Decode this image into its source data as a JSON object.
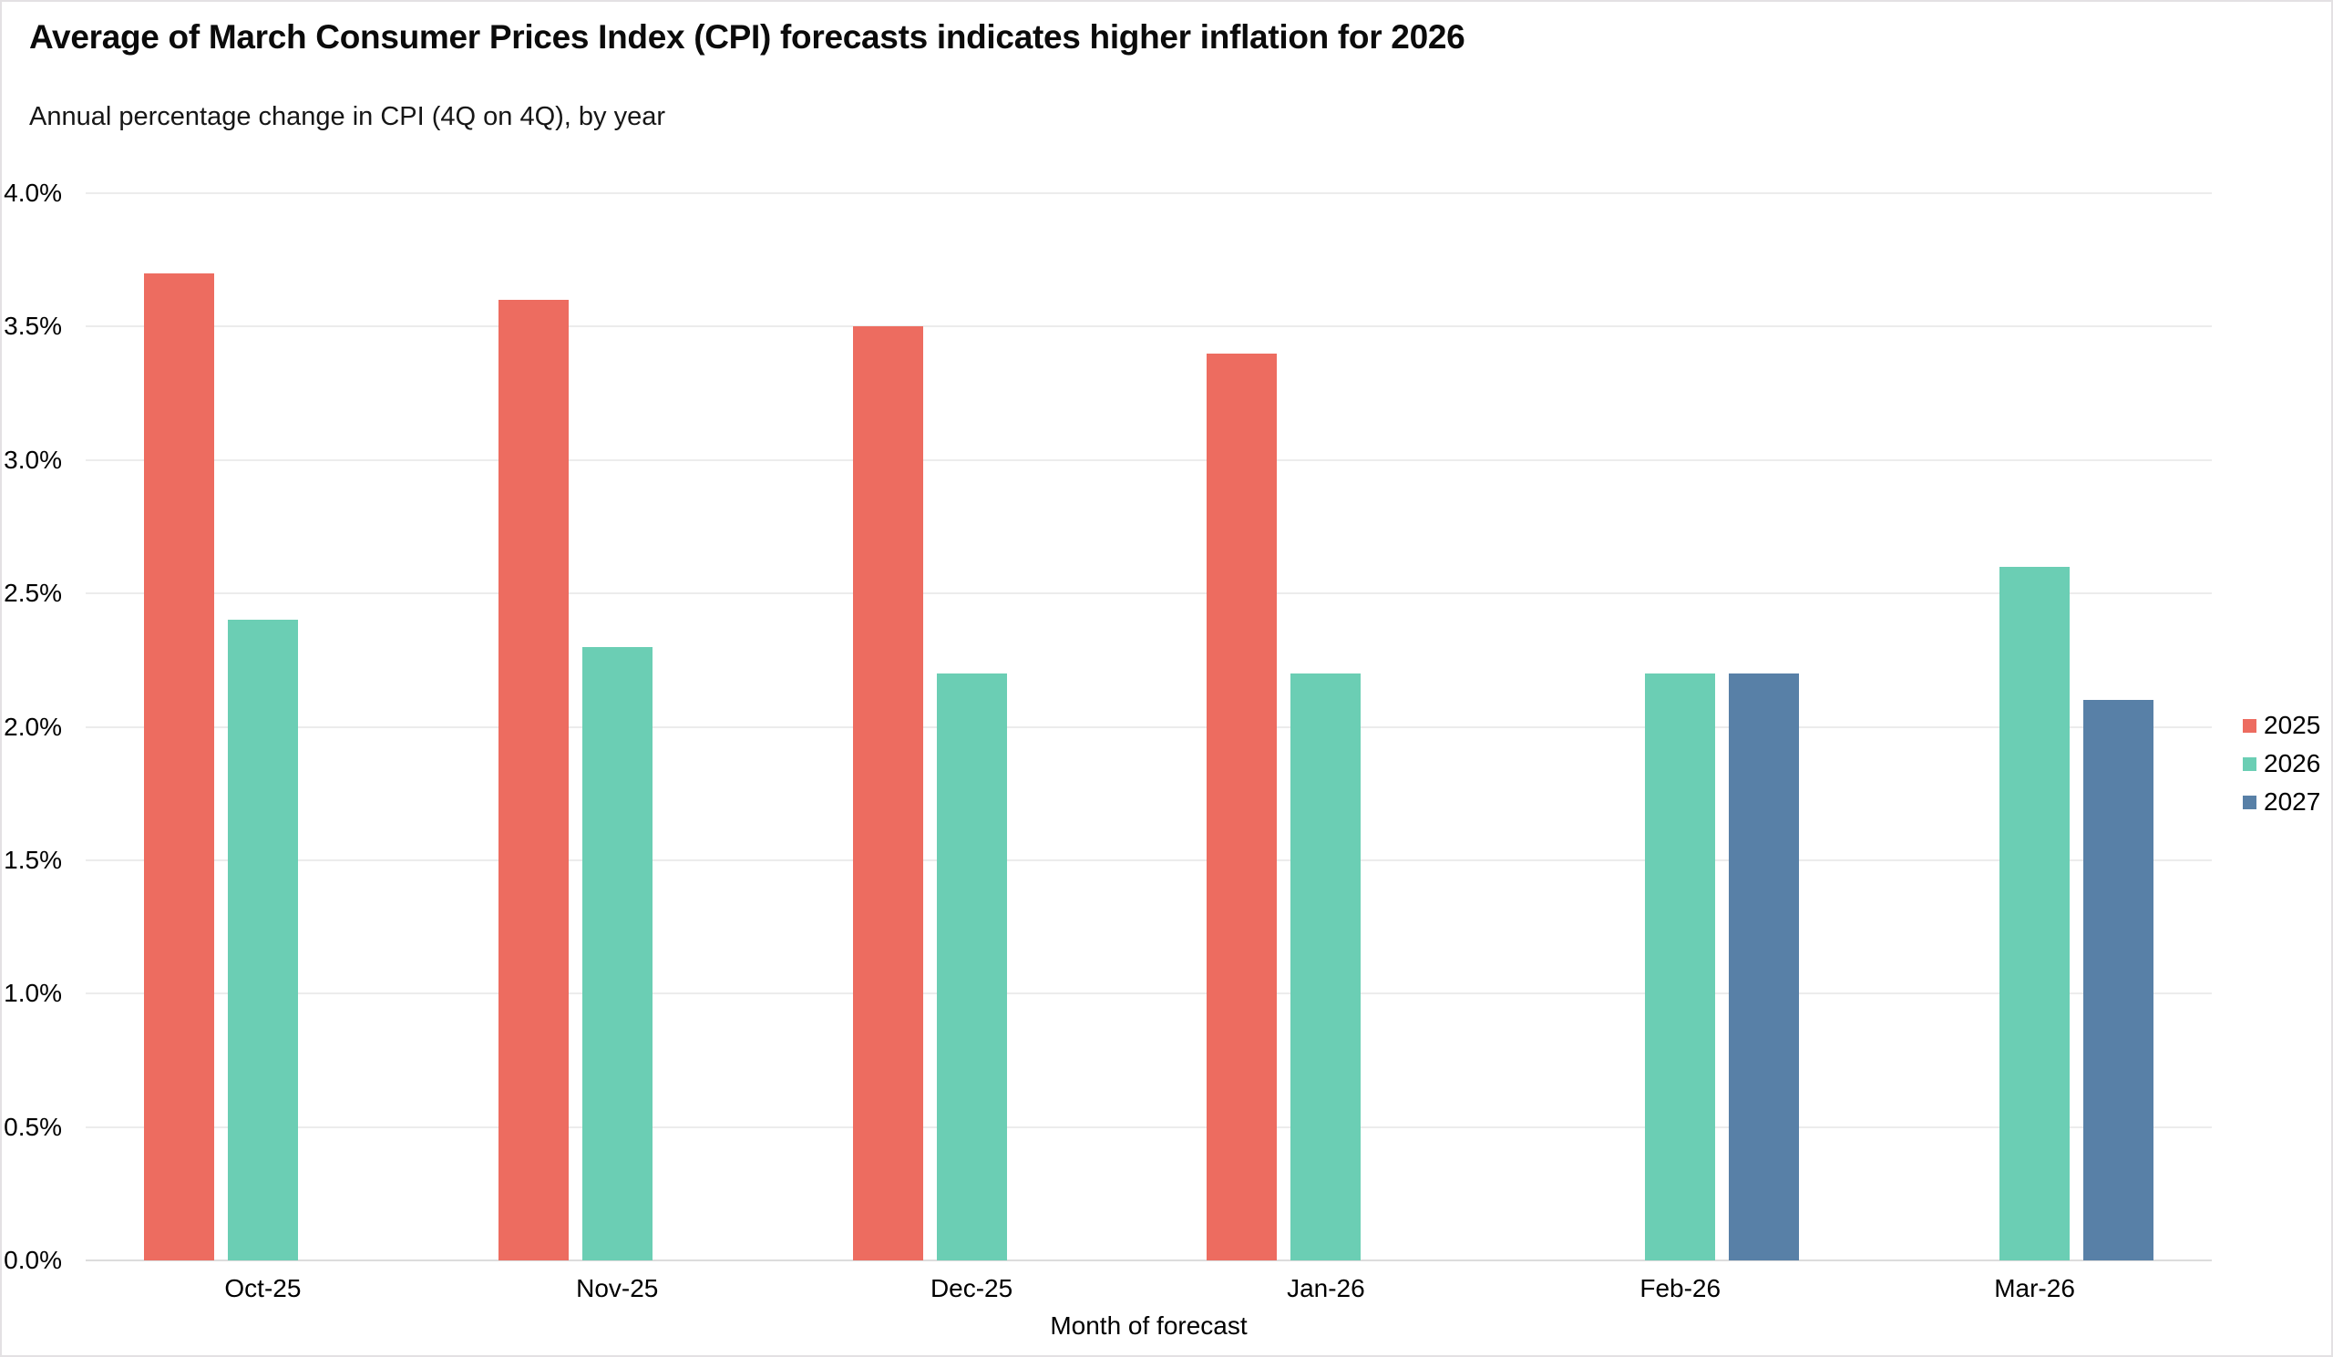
{
  "header": {
    "title": "Average of March Consumer Prices Index (CPI) forecasts indicates higher inflation for 2026",
    "subtitle": "Annual percentage change in CPI (4Q on 4Q), by year"
  },
  "chart_data": {
    "type": "bar",
    "title": "Average of March Consumer Prices Index (CPI) forecasts indicates higher inflation for 2026",
    "subtitle": "Annual percentage change in CPI (4Q on 4Q), by year",
    "xlabel": "Month of forecast",
    "ylabel": "",
    "categories": [
      "Oct-25",
      "Nov-25",
      "Dec-25",
      "Jan-26",
      "Feb-26",
      "Mar-26"
    ],
    "series": [
      {
        "name": "2025",
        "color": "#ED6C60",
        "values": [
          3.7,
          3.6,
          3.5,
          3.4,
          null,
          null
        ]
      },
      {
        "name": "2026",
        "color": "#6BCEB4",
        "values": [
          2.4,
          2.3,
          2.2,
          2.2,
          2.2,
          2.6
        ]
      },
      {
        "name": "2027",
        "color": "#5880A7",
        "values": [
          null,
          null,
          null,
          null,
          2.2,
          2.1
        ]
      }
    ],
    "ylim": [
      0,
      4.0
    ],
    "ytick_labels": [
      "4.0%",
      "3.5%",
      "3.0%",
      "2.5%",
      "2.0%",
      "1.5%",
      "1.0%",
      "0.5%",
      "0.0%"
    ],
    "grid": true,
    "legend_position": "right",
    "value_format": "percent"
  },
  "colors": {
    "gridline": "#ececec",
    "baseline": "#dcdcdc",
    "card_border": "#e3e1e3",
    "text": "#000000"
  }
}
